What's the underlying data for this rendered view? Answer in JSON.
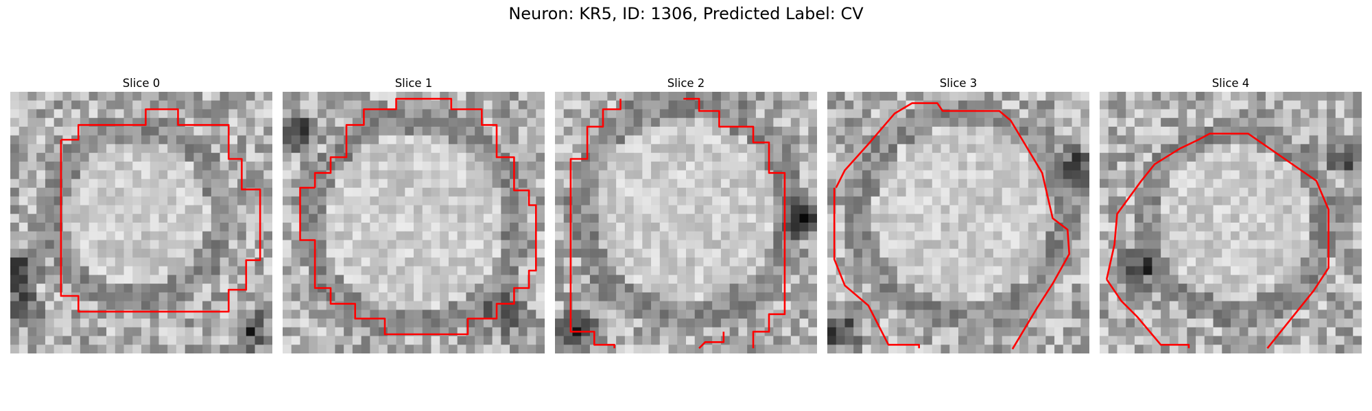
{
  "figure": {
    "title": "Neuron: KR5, ID: 1306, Predicted Label: CV"
  },
  "colors": {
    "contour": "#ff0000",
    "background": "#ffffff"
  },
  "panels": [
    {
      "title": "Slice 0"
    },
    {
      "title": "Slice 1"
    },
    {
      "title": "Slice 2"
    },
    {
      "title": "Slice 3"
    },
    {
      "title": "Slice 4"
    }
  ]
}
